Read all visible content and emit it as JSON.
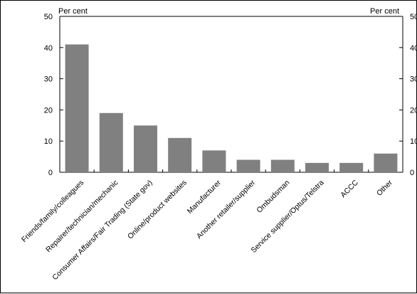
{
  "chart_data": {
    "type": "bar",
    "title": "",
    "xlabel": "",
    "ylabel": "",
    "unit_left": "Per cent",
    "unit_right": "Per cent",
    "ylim": [
      0,
      50
    ],
    "yticks": [
      "0",
      "10",
      "20",
      "30",
      "40",
      "50"
    ],
    "grid": false,
    "legend": "none",
    "bar_color": "#808080",
    "categories": [
      "Friends/family/colleagues",
      "Repairer/technician/mechanic",
      "Consumer Affairs/Fair Trading (State gov)",
      "Online/product websites",
      "Manufacturer",
      "Another retailer/supplier",
      "Ombudsman",
      "Service supplier/Optus/Telstra",
      "ACCC",
      "Other"
    ],
    "values": [
      41,
      19,
      15,
      11,
      7,
      4,
      4,
      3,
      3,
      6
    ]
  }
}
